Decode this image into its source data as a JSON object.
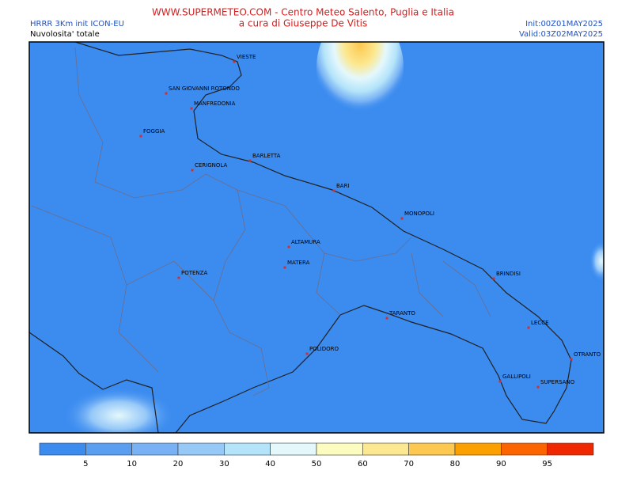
{
  "header": {
    "site": "WWW.SUPERMETEO.COM - Centro Meteo Salento, Puglia e Italia",
    "author": "a cura di Giuseppe De Vitis",
    "model": "HRRR 3Km init ICON-EU",
    "field": "Nuvolosita' totale",
    "init": "Init:00Z01MAY2025",
    "valid": "Valid:03Z02MAY2025"
  },
  "cities": [
    "VIESTE",
    "SAN GIOVANNI ROTONDO",
    "MANFREDONIA",
    "FOGGIA",
    "CERIGNOLA",
    "BARLETTA",
    "BARI",
    "MONOPOLI",
    "ALTAMURA",
    "MATERA",
    "POTENZA",
    "BRINDISI",
    "TARANTO",
    "LECCE",
    "POLIDORO",
    "OTRANTO",
    "GALLIPOLI",
    "SUPERSANO"
  ],
  "colorbar": {
    "ticks": [
      5,
      10,
      20,
      30,
      40,
      50,
      60,
      70,
      80,
      90,
      95
    ],
    "colors": [
      "#3c8cf0",
      "#5a9ef2",
      "#78b2f4",
      "#96c8f8",
      "#b4e4fa",
      "#e4f8fc",
      "#fcfcc0",
      "#fce890",
      "#fcc850",
      "#fca000",
      "#fc6400",
      "#f02800"
    ]
  }
}
